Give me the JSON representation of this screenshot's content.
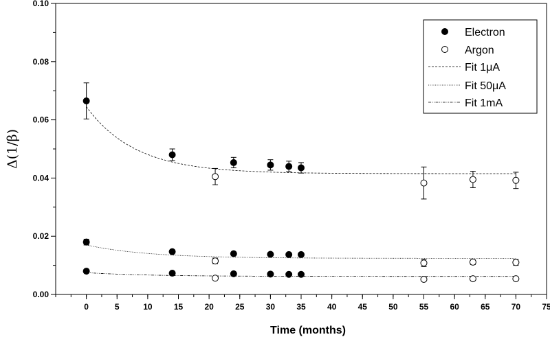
{
  "chart_data": {
    "type": "scatter",
    "title": "",
    "xlabel": "Time (months)",
    "ylabel": "Δ(1/β)",
    "xlim": [
      -5,
      75
    ],
    "ylim": [
      0,
      0.1
    ],
    "xticks": [
      0,
      5,
      10,
      15,
      20,
      25,
      30,
      35,
      40,
      45,
      50,
      55,
      60,
      65,
      70,
      75
    ],
    "yticks": [
      0.0,
      0.02,
      0.04,
      0.06,
      0.08,
      0.1
    ],
    "xtick_labels": [
      "0",
      "5",
      "10",
      "15",
      "20",
      "25",
      "30",
      "35",
      "40",
      "45",
      "50",
      "55",
      "60",
      "65",
      "70",
      "75"
    ],
    "ytick_labels": [
      "0.00",
      "0.02",
      "0.04",
      "0.06",
      "0.08",
      "0.10"
    ],
    "grid": false,
    "legend_position": "top-right",
    "series": [
      {
        "name": "Electron",
        "marker": "filled-circle",
        "color": "#000000",
        "points": [
          {
            "x": 0,
            "y": 0.0665,
            "err": 0.0062
          },
          {
            "x": 14,
            "y": 0.048,
            "err": 0.002
          },
          {
            "x": 24,
            "y": 0.0453,
            "err": 0.0018
          },
          {
            "x": 30,
            "y": 0.0445,
            "err": 0.0018
          },
          {
            "x": 33,
            "y": 0.044,
            "err": 0.0018
          },
          {
            "x": 35,
            "y": 0.0435,
            "err": 0.0018
          },
          {
            "x": 0,
            "y": 0.018,
            "err": 0.001
          },
          {
            "x": 14,
            "y": 0.0147,
            "err": 0.0005
          },
          {
            "x": 24,
            "y": 0.014,
            "err": 0.0004
          },
          {
            "x": 30,
            "y": 0.0138,
            "err": 0.0004
          },
          {
            "x": 33,
            "y": 0.0137,
            "err": 0.0004
          },
          {
            "x": 35,
            "y": 0.0137,
            "err": 0.0004
          },
          {
            "x": 0,
            "y": 0.008,
            "err": 0.0004
          },
          {
            "x": 14,
            "y": 0.0073,
            "err": 0.0003
          },
          {
            "x": 24,
            "y": 0.0071,
            "err": 0.0003
          },
          {
            "x": 30,
            "y": 0.007,
            "err": 0.0003
          },
          {
            "x": 33,
            "y": 0.0069,
            "err": 0.0003
          },
          {
            "x": 35,
            "y": 0.0069,
            "err": 0.0003
          }
        ]
      },
      {
        "name": "Argon",
        "marker": "open-circle",
        "color": "#000000",
        "points": [
          {
            "x": 21,
            "y": 0.0405,
            "err": 0.0028
          },
          {
            "x": 55,
            "y": 0.0383,
            "err": 0.0055
          },
          {
            "x": 63,
            "y": 0.0395,
            "err": 0.0028
          },
          {
            "x": 70,
            "y": 0.0392,
            "err": 0.0028
          },
          {
            "x": 21,
            "y": 0.0115,
            "err": 0.001
          },
          {
            "x": 55,
            "y": 0.0108,
            "err": 0.0012
          },
          {
            "x": 63,
            "y": 0.0111,
            "err": 0.0008
          },
          {
            "x": 70,
            "y": 0.011,
            "err": 0.001
          },
          {
            "x": 21,
            "y": 0.0056,
            "err": 0.0006
          },
          {
            "x": 55,
            "y": 0.0052,
            "err": 0.0006
          },
          {
            "x": 63,
            "y": 0.0054,
            "err": 0.0005
          },
          {
            "x": 70,
            "y": 0.0054,
            "err": 0.0005
          }
        ]
      }
    ],
    "fits": [
      {
        "name": "Fit 1μA",
        "style": "dashed",
        "model": "y = y0 + A*exp(-x/t)",
        "y0": 0.0415,
        "A": 0.023,
        "t": 8.0,
        "x_range": [
          0,
          70
        ]
      },
      {
        "name": "Fit 50μA",
        "style": "dotted",
        "model": "y = y0 + A*exp(-x/t)",
        "y0": 0.0124,
        "A": 0.0046,
        "t": 10.0,
        "x_range": [
          0,
          70
        ]
      },
      {
        "name": "Fit 1mA",
        "style": "dash-dot-dot",
        "model": "y = y0 + A*exp(-x/t)",
        "y0": 0.0062,
        "A": 0.0013,
        "t": 10.0,
        "x_range": [
          0,
          70
        ]
      }
    ],
    "legend": [
      "Electron",
      "Argon",
      "Fit 1μA",
      "Fit 50μA",
      "Fit 1mA"
    ]
  }
}
